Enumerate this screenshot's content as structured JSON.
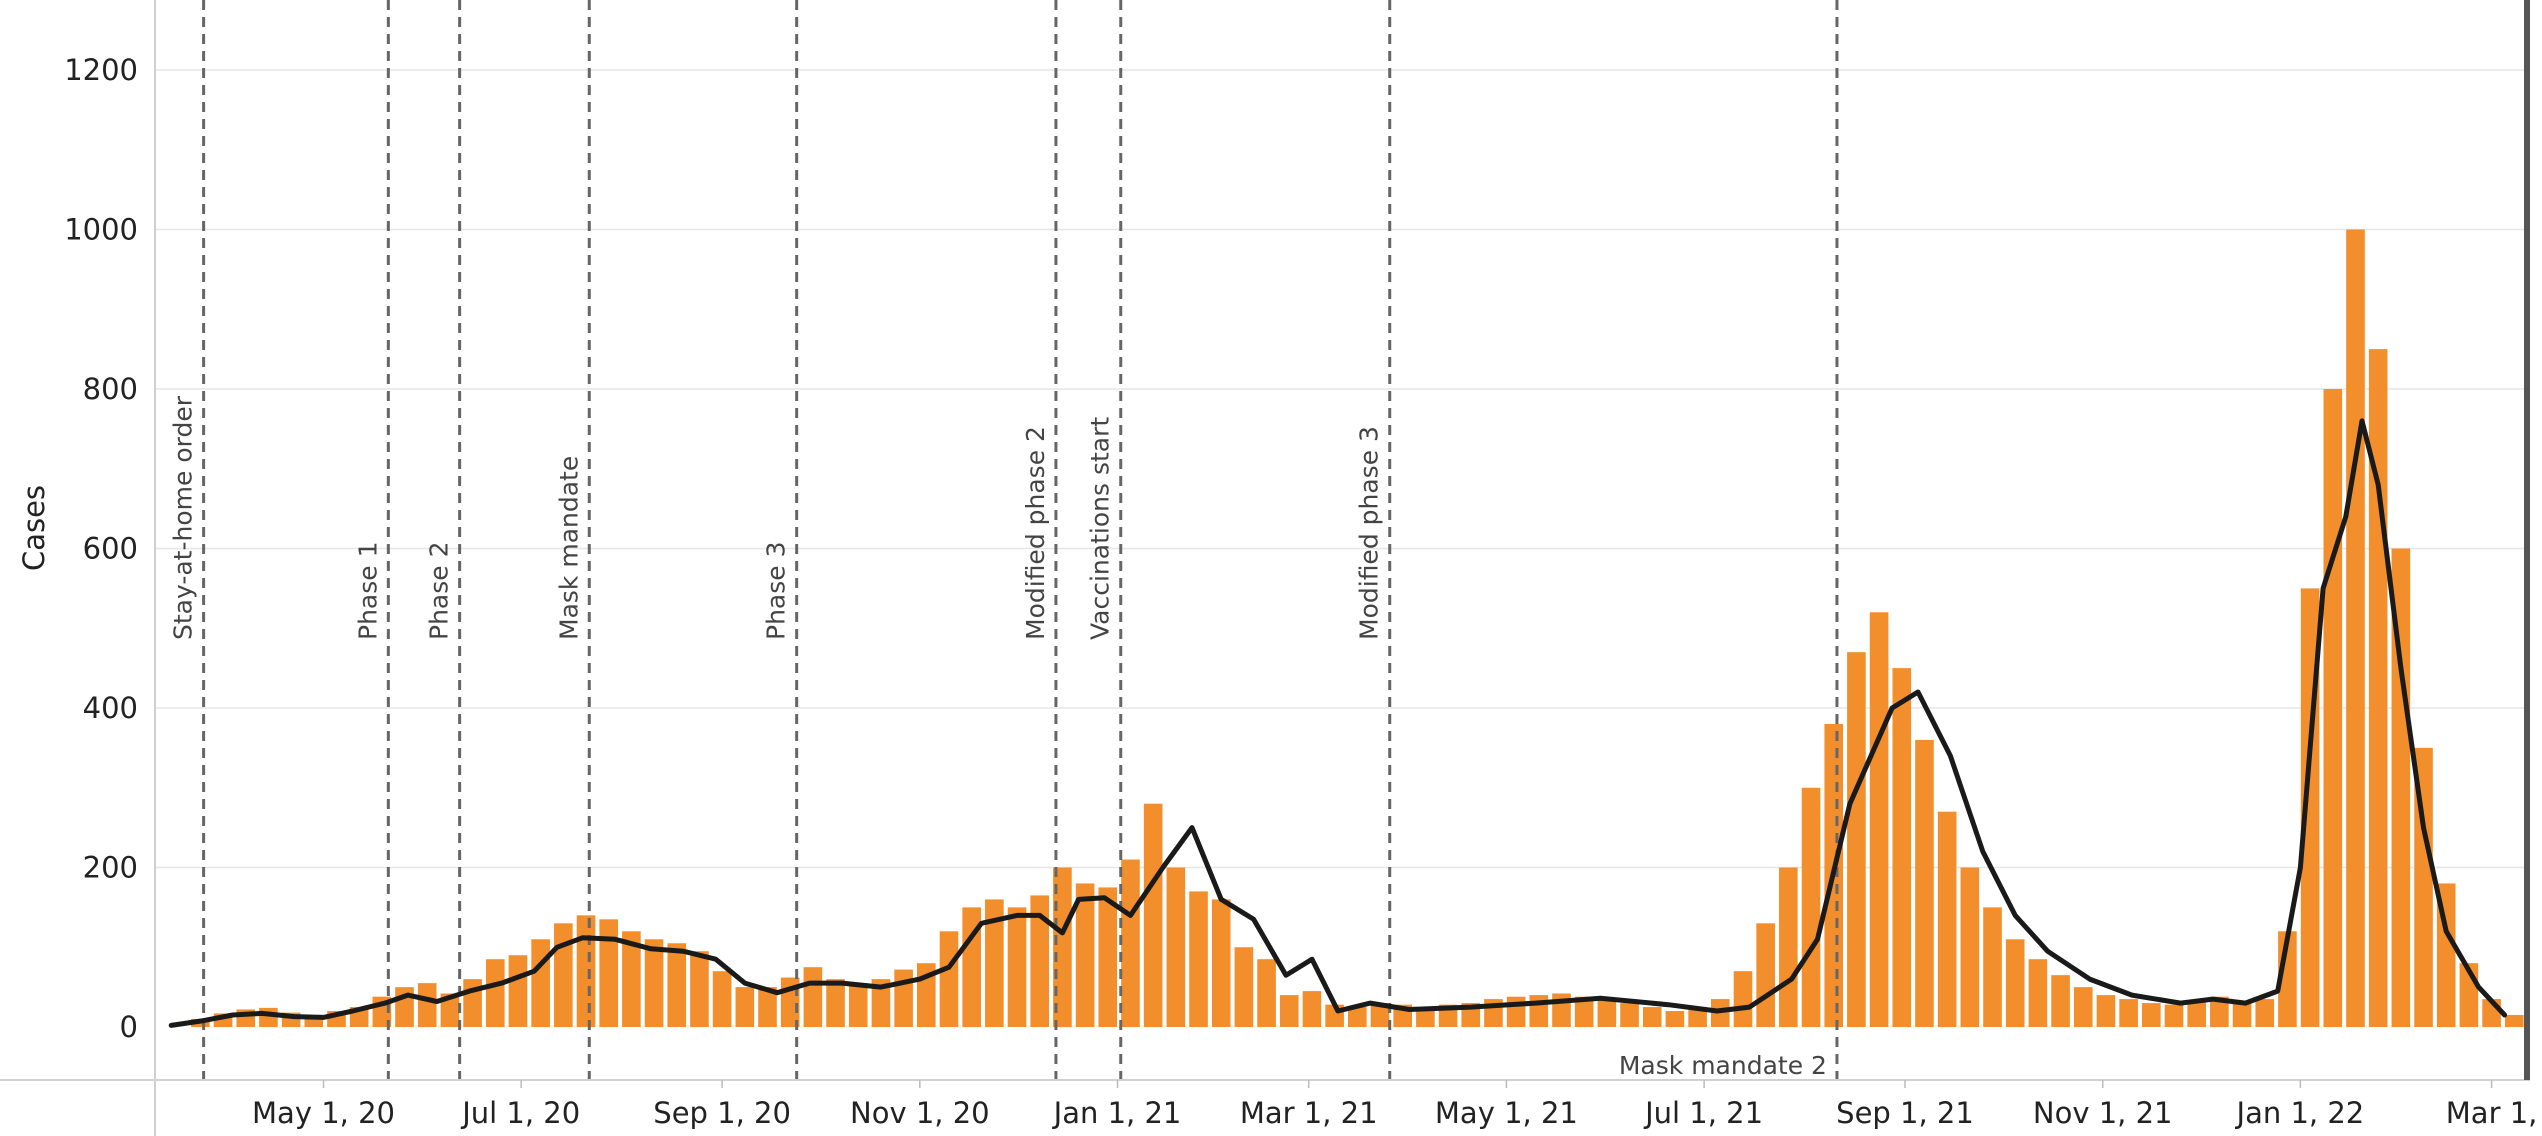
{
  "chart_data": {
    "type": "bar",
    "ylabel": "Cases",
    "xlabel": "",
    "ylim": [
      0,
      1280
    ],
    "y_ticks": [
      0,
      200,
      400,
      600,
      800,
      1000,
      1200
    ],
    "x_range": [
      "2020-03-10",
      "2022-03-11"
    ],
    "x_ticks": [
      {
        "date": "2020-05-01",
        "label": "May 1, 20"
      },
      {
        "date": "2020-07-01",
        "label": "Jul 1, 20"
      },
      {
        "date": "2020-09-01",
        "label": "Sep 1, 20"
      },
      {
        "date": "2020-11-01",
        "label": "Nov 1, 20"
      },
      {
        "date": "2021-01-01",
        "label": "Jan 1, 21"
      },
      {
        "date": "2021-03-01",
        "label": "Mar 1, 21"
      },
      {
        "date": "2021-05-01",
        "label": "May 1, 21"
      },
      {
        "date": "2021-07-01",
        "label": "Jul 1, 21"
      },
      {
        "date": "2021-09-01",
        "label": "Sep 1, 21"
      },
      {
        "date": "2021-11-01",
        "label": "Nov 1, 21"
      },
      {
        "date": "2022-01-01",
        "label": "Jan 1, 22"
      },
      {
        "date": "2022-03-01",
        "label": "Mar 1,"
      }
    ],
    "grid": "horizontal",
    "colors": {
      "bars": "#f28e2b",
      "avg_line": "#1a1a1a",
      "event_line": "#666666",
      "grid": "#e6e6e6"
    },
    "events": [
      {
        "date": "2020-03-25",
        "label": "Stay-at-home order"
      },
      {
        "date": "2020-05-21",
        "label": "Phase 1"
      },
      {
        "date": "2020-06-12",
        "label": "Phase 2"
      },
      {
        "date": "2020-07-22",
        "label": "Mask mandate"
      },
      {
        "date": "2020-09-24",
        "label": "Phase 3"
      },
      {
        "date": "2020-12-13",
        "label": "Modified phase 2"
      },
      {
        "date": "2021-01-02",
        "label": "Vaccinations start"
      },
      {
        "date": "2021-03-26",
        "label": "Modified phase 3"
      },
      {
        "date": "2021-08-11",
        "label": "Mask mandate 2"
      }
    ],
    "series": [
      {
        "type": "bar",
        "points": [
          [
            "2020-03-24",
            10
          ],
          [
            "2020-03-31",
            17
          ],
          [
            "2020-04-07",
            22
          ],
          [
            "2020-04-14",
            24
          ],
          [
            "2020-04-21",
            18
          ],
          [
            "2020-04-28",
            12
          ],
          [
            "2020-05-05",
            20
          ],
          [
            "2020-05-12",
            25
          ],
          [
            "2020-05-19",
            38
          ],
          [
            "2020-05-26",
            50
          ],
          [
            "2020-06-02",
            55
          ],
          [
            "2020-06-09",
            42
          ],
          [
            "2020-06-16",
            60
          ],
          [
            "2020-06-23",
            85
          ],
          [
            "2020-06-30",
            90
          ],
          [
            "2020-07-07",
            110
          ],
          [
            "2020-07-14",
            130
          ],
          [
            "2020-07-21",
            140
          ],
          [
            "2020-07-28",
            135
          ],
          [
            "2020-08-04",
            120
          ],
          [
            "2020-08-11",
            110
          ],
          [
            "2020-08-18",
            105
          ],
          [
            "2020-08-25",
            95
          ],
          [
            "2020-09-01",
            70
          ],
          [
            "2020-09-08",
            50
          ],
          [
            "2020-09-15",
            50
          ],
          [
            "2020-09-22",
            62
          ],
          [
            "2020-09-29",
            75
          ],
          [
            "2020-10-06",
            60
          ],
          [
            "2020-10-13",
            55
          ],
          [
            "2020-10-20",
            60
          ],
          [
            "2020-10-27",
            72
          ],
          [
            "2020-11-03",
            80
          ],
          [
            "2020-11-10",
            120
          ],
          [
            "2020-11-17",
            150
          ],
          [
            "2020-11-24",
            160
          ],
          [
            "2020-12-01",
            150
          ],
          [
            "2020-12-08",
            165
          ],
          [
            "2020-12-15",
            200
          ],
          [
            "2020-12-22",
            180
          ],
          [
            "2020-12-29",
            175
          ],
          [
            "2021-01-05",
            210
          ],
          [
            "2021-01-12",
            280
          ],
          [
            "2021-01-19",
            200
          ],
          [
            "2021-01-26",
            170
          ],
          [
            "2021-02-02",
            160
          ],
          [
            "2021-02-09",
            100
          ],
          [
            "2021-02-16",
            85
          ],
          [
            "2021-02-23",
            40
          ],
          [
            "2021-03-02",
            45
          ],
          [
            "2021-03-09",
            28
          ],
          [
            "2021-03-16",
            25
          ],
          [
            "2021-03-23",
            30
          ],
          [
            "2021-03-30",
            28
          ],
          [
            "2021-04-06",
            25
          ],
          [
            "2021-04-13",
            28
          ],
          [
            "2021-04-20",
            30
          ],
          [
            "2021-04-27",
            35
          ],
          [
            "2021-05-04",
            38
          ],
          [
            "2021-05-11",
            40
          ],
          [
            "2021-05-18",
            42
          ],
          [
            "2021-05-25",
            38
          ],
          [
            "2021-06-01",
            35
          ],
          [
            "2021-06-08",
            30
          ],
          [
            "2021-06-15",
            25
          ],
          [
            "2021-06-22",
            20
          ],
          [
            "2021-06-29",
            25
          ],
          [
            "2021-07-06",
            35
          ],
          [
            "2021-07-13",
            70
          ],
          [
            "2021-07-20",
            130
          ],
          [
            "2021-07-27",
            200
          ],
          [
            "2021-08-03",
            300
          ],
          [
            "2021-08-10",
            380
          ],
          [
            "2021-08-17",
            470
          ],
          [
            "2021-08-24",
            520
          ],
          [
            "2021-08-31",
            450
          ],
          [
            "2021-09-07",
            360
          ],
          [
            "2021-09-14",
            270
          ],
          [
            "2021-09-21",
            200
          ],
          [
            "2021-09-28",
            150
          ],
          [
            "2021-10-05",
            110
          ],
          [
            "2021-10-12",
            85
          ],
          [
            "2021-10-19",
            65
          ],
          [
            "2021-10-26",
            50
          ],
          [
            "2021-11-02",
            40
          ],
          [
            "2021-11-09",
            35
          ],
          [
            "2021-11-16",
            30
          ],
          [
            "2021-11-23",
            28
          ],
          [
            "2021-11-30",
            32
          ],
          [
            "2021-12-07",
            38
          ],
          [
            "2021-12-14",
            30
          ],
          [
            "2021-12-21",
            35
          ],
          [
            "2021-12-28",
            120
          ],
          [
            "2022-01-04",
            550
          ],
          [
            "2022-01-11",
            800
          ],
          [
            "2022-01-18",
            1000
          ],
          [
            "2022-01-25",
            850
          ],
          [
            "2022-02-01",
            600
          ],
          [
            "2022-02-08",
            350
          ],
          [
            "2022-02-15",
            180
          ],
          [
            "2022-02-22",
            80
          ],
          [
            "2022-03-01",
            35
          ],
          [
            "2022-03-08",
            15
          ]
        ]
      },
      {
        "type": "line",
        "points": [
          [
            "2020-03-15",
            2
          ],
          [
            "2020-03-25",
            8
          ],
          [
            "2020-04-03",
            15
          ],
          [
            "2020-04-12",
            17
          ],
          [
            "2020-04-22",
            13
          ],
          [
            "2020-05-01",
            12
          ],
          [
            "2020-05-10",
            20
          ],
          [
            "2020-05-20",
            30
          ],
          [
            "2020-05-27",
            40
          ],
          [
            "2020-06-05",
            32
          ],
          [
            "2020-06-15",
            45
          ],
          [
            "2020-06-25",
            55
          ],
          [
            "2020-07-05",
            70
          ],
          [
            "2020-07-12",
            100
          ],
          [
            "2020-07-20",
            112
          ],
          [
            "2020-07-30",
            110
          ],
          [
            "2020-08-10",
            98
          ],
          [
            "2020-08-20",
            95
          ],
          [
            "2020-08-30",
            85
          ],
          [
            "2020-09-08",
            55
          ],
          [
            "2020-09-18",
            43
          ],
          [
            "2020-09-28",
            55
          ],
          [
            "2020-10-08",
            55
          ],
          [
            "2020-10-20",
            50
          ],
          [
            "2020-11-01",
            60
          ],
          [
            "2020-11-10",
            75
          ],
          [
            "2020-11-20",
            130
          ],
          [
            "2020-12-01",
            140
          ],
          [
            "2020-12-08",
            140
          ],
          [
            "2020-12-15",
            118
          ],
          [
            "2020-12-20",
            160
          ],
          [
            "2020-12-28",
            162
          ],
          [
            "2021-01-05",
            140
          ],
          [
            "2021-01-15",
            200
          ],
          [
            "2021-01-24",
            250
          ],
          [
            "2021-02-02",
            160
          ],
          [
            "2021-02-12",
            135
          ],
          [
            "2021-02-22",
            65
          ],
          [
            "2021-03-02",
            85
          ],
          [
            "2021-03-10",
            20
          ],
          [
            "2021-03-20",
            30
          ],
          [
            "2021-04-01",
            22
          ],
          [
            "2021-04-20",
            25
          ],
          [
            "2021-05-10",
            30
          ],
          [
            "2021-05-30",
            36
          ],
          [
            "2021-06-20",
            28
          ],
          [
            "2021-07-05",
            20
          ],
          [
            "2021-07-15",
            25
          ],
          [
            "2021-07-28",
            60
          ],
          [
            "2021-08-05",
            110
          ],
          [
            "2021-08-15",
            280
          ],
          [
            "2021-08-28",
            400
          ],
          [
            "2021-09-05",
            420
          ],
          [
            "2021-09-15",
            340
          ],
          [
            "2021-09-25",
            220
          ],
          [
            "2021-10-05",
            140
          ],
          [
            "2021-10-15",
            95
          ],
          [
            "2021-10-28",
            60
          ],
          [
            "2021-11-10",
            40
          ],
          [
            "2021-11-25",
            30
          ],
          [
            "2021-12-05",
            35
          ],
          [
            "2021-12-15",
            30
          ],
          [
            "2021-12-25",
            45
          ],
          [
            "2022-01-01",
            200
          ],
          [
            "2022-01-08",
            550
          ],
          [
            "2022-01-15",
            640
          ],
          [
            "2022-01-20",
            760
          ],
          [
            "2022-01-25",
            680
          ],
          [
            "2022-02-01",
            450
          ],
          [
            "2022-02-08",
            250
          ],
          [
            "2022-02-15",
            120
          ],
          [
            "2022-02-25",
            50
          ],
          [
            "2022-03-05",
            15
          ]
        ]
      }
    ]
  }
}
